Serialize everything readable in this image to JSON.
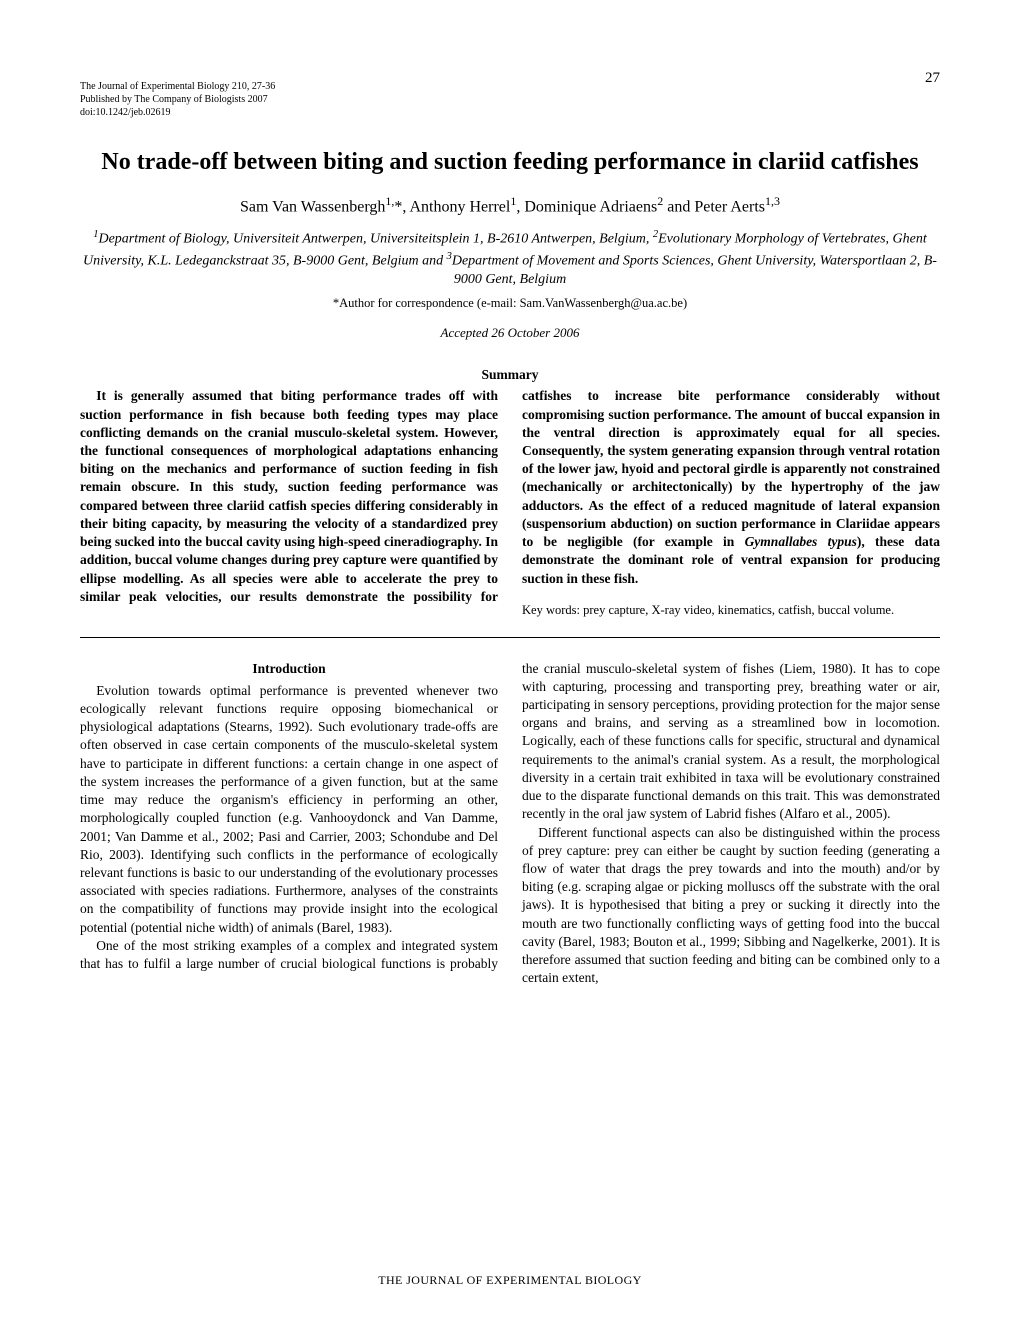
{
  "page_number": "27",
  "journal": {
    "line1": "The Journal of Experimental Biology 210, 27-36",
    "line2": "Published by The Company of Biologists 2007",
    "line3": "doi:10.1242/jeb.02619"
  },
  "title": "No trade-off between biting and suction feeding performance in clariid catfishes",
  "authors_html": "Sam Van Wassenbergh<sup>1,</sup>*, Anthony Herrel<sup>1</sup>, Dominique Adriaens<sup>2</sup> and Peter Aerts<sup>1,3</sup>",
  "affiliations_html": "<sup>1</sup>Department of Biology, Universiteit Antwerpen, Universiteitsplein 1, B-2610 Antwerpen, Belgium, <sup>2</sup>Evolutionary Morphology of Vertebrates, Ghent University, K.L. Ledeganckstraat 35, B-9000 Gent, Belgium and <sup>3</sup>Department of Movement and Sports Sciences, Ghent University, Watersportlaan 2, B-9000 Gent, Belgium",
  "correspondence": "*Author for correspondence (e-mail: Sam.VanWassenbergh@ua.ac.be)",
  "accepted": "Accepted 26 October 2006",
  "summary_heading": "Summary",
  "summary_text_html": "It is generally assumed that biting performance trades off with suction performance in fish because both feeding types may place conflicting demands on the cranial musculo-skeletal system. However, the functional consequences of morphological adaptations enhancing biting on the mechanics and performance of suction feeding in fish remain obscure. In this study, suction feeding performance was compared between three clariid catfish species differing considerably in their biting capacity, by measuring the velocity of a standardized prey being sucked into the buccal cavity using high-speed cineradiography. In addition, buccal volume changes during prey capture were quantified by ellipse modelling. As all species were able to accelerate the prey to similar peak velocities, our results demonstrate the possibility for catfishes to increase bite performance considerably without compromising suction performance. The amount of buccal expansion in the ventral direction is approximately equal for all species. Consequently, the system generating expansion through ventral rotation of the lower jaw, hyoid and pectoral girdle is apparently not constrained (mechanically or architectonically) by the hypertrophy of the jaw adductors. As the effect of a reduced magnitude of lateral expansion (suspensorium abduction) on suction performance in Clariidae appears to be negligible (for example in <span class=\"italic-species\">Gymnallabes typus</span>), these data demonstrate the dominant role of ventral expansion for producing suction in these fish.",
  "keywords": "Key words: prey capture, X-ray video, kinematics, catfish, buccal volume.",
  "intro_heading": "Introduction",
  "intro_p1": "Evolution towards optimal performance is prevented whenever two ecologically relevant functions require opposing biomechanical or physiological adaptations (Stearns, 1992). Such evolutionary trade-offs are often observed in case certain components of the musculo-skeletal system have to participate in different functions: a certain change in one aspect of the system increases the performance of a given function, but at the same time may reduce the organism's efficiency in performing an other, morphologically coupled function (e.g. Vanhooydonck and Van Damme, 2001; Van Damme et al., 2002; Pasi and Carrier, 2003; Schondube and Del Rio, 2003). Identifying such conflicts in the performance of ecologically relevant functions is basic to our understanding of the evolutionary processes associated with species radiations. Furthermore, analyses of the constraints on the compatibility of functions may provide insight into the ecological potential (potential niche width) of animals (Barel, 1983).",
  "intro_p2": "One of the most striking examples of a complex and integrated system that has to fulfil a large number of crucial biological functions is probably the cranial musculo-skeletal system of fishes (Liem, 1980). It has to cope with capturing, processing and transporting prey, breathing water or air, participating in sensory perceptions, providing protection for the major sense organs and brains, and serving as a streamlined bow in locomotion. Logically, each of these functions calls for specific, structural and dynamical requirements to the animal's cranial system. As a result, the morphological diversity in a certain trait exhibited in taxa will be evolutionary constrained due to the disparate functional demands on this trait. This was demonstrated recently in the oral jaw system of Labrid fishes (Alfaro et al., 2005).",
  "intro_p3": "Different functional aspects can also be distinguished within the process of prey capture: prey can either be caught by suction feeding (generating a flow of water that drags the prey towards and into the mouth) and/or by biting (e.g. scraping algae or picking molluscs off the substrate with the oral jaws). It is hypothesised that biting a prey or sucking it directly into the mouth are two functionally conflicting ways of getting food into the buccal cavity (Barel, 1983; Bouton et al., 1999; Sibbing and Nagelkerke, 2001). It is therefore assumed that suction feeding and biting can be combined only to a certain extent,",
  "footer": "THE JOURNAL OF EXPERIMENTAL BIOLOGY"
}
